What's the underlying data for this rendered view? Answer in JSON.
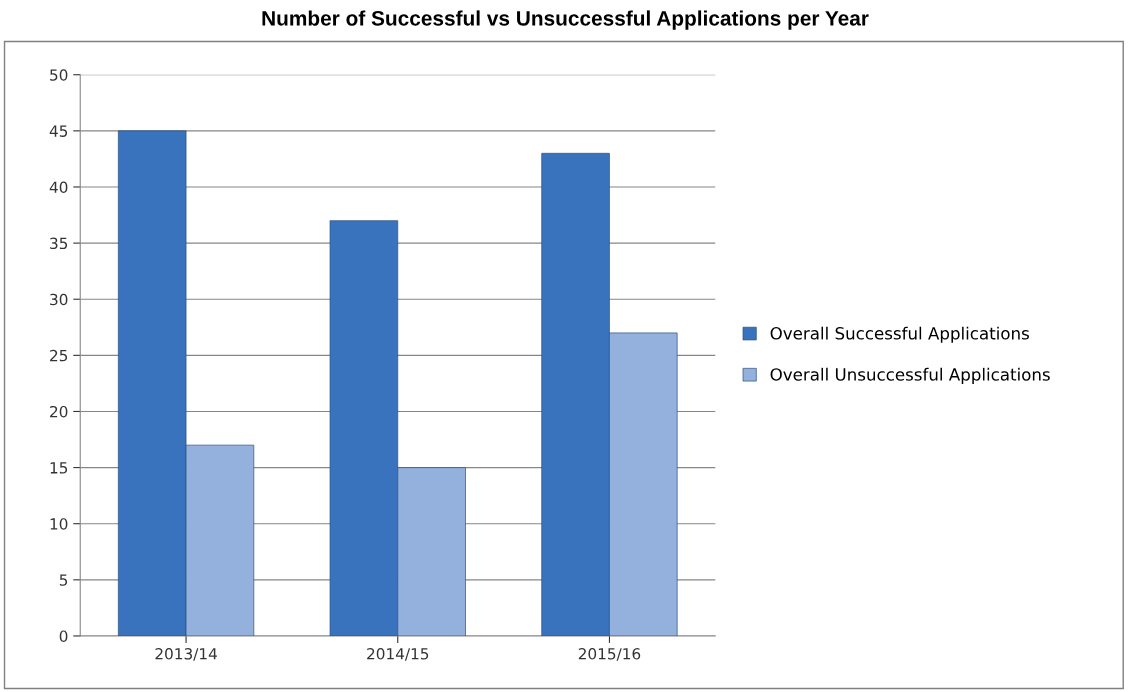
{
  "chart_data": {
    "type": "bar",
    "title": "Number of Successful vs Unsuccessful Applications per Year",
    "categories": [
      "2013/14",
      "2014/15",
      "2015/16"
    ],
    "series": [
      {
        "name": "Overall Successful Applications",
        "color": "#3a73bd",
        "values": [
          45,
          37,
          43
        ]
      },
      {
        "name": "Overall Unsuccessful Applications",
        "color": "#93b1dc",
        "values": [
          17,
          15,
          27
        ]
      }
    ],
    "ylim": [
      0,
      50
    ],
    "yticks": [
      0,
      5,
      10,
      15,
      20,
      25,
      30,
      35,
      40,
      45,
      50
    ],
    "grid": "y",
    "legend": "right"
  }
}
